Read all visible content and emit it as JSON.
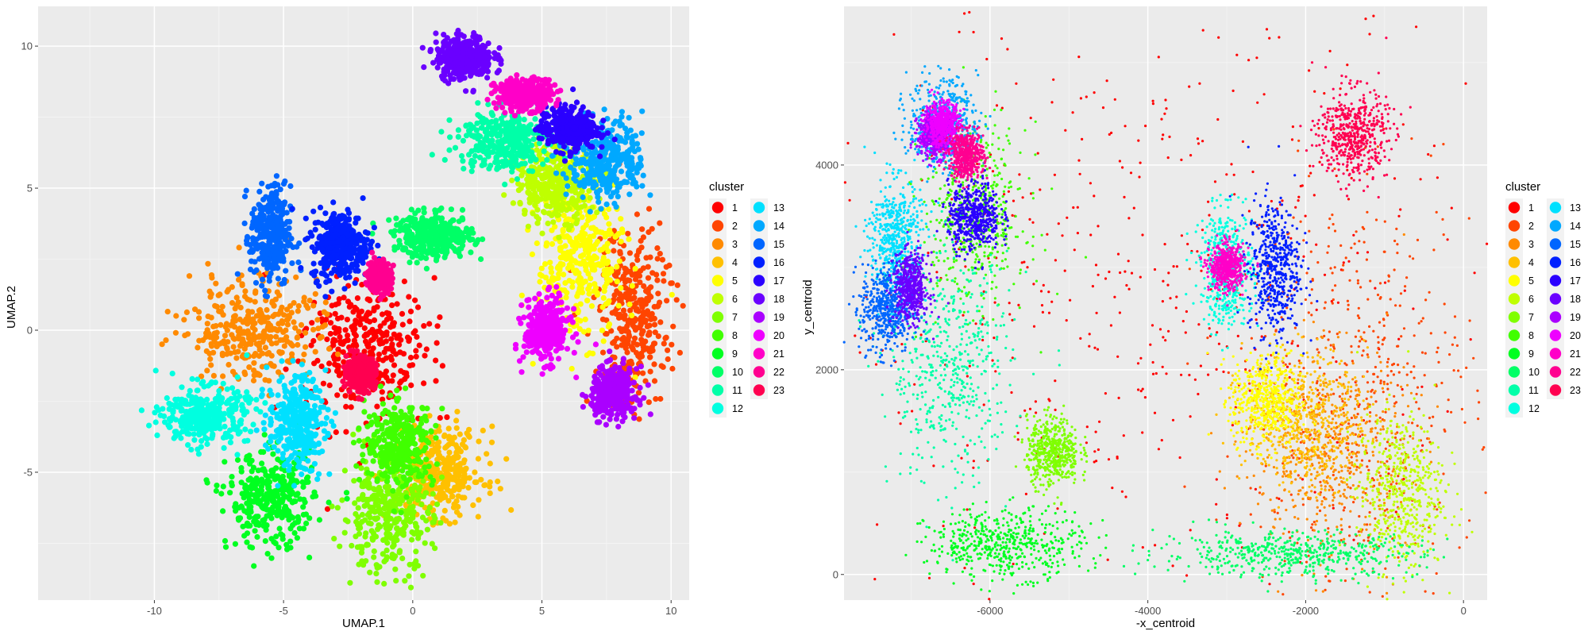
{
  "chart_data": [
    {
      "type": "scatter",
      "title": "",
      "xlabel": "UMAP.1",
      "ylabel": "UMAP.2",
      "xlim": [
        -14.5,
        10.7
      ],
      "ylim": [
        -9.5,
        11.4
      ],
      "x_ticks": [
        -10,
        -5,
        0,
        5,
        10
      ],
      "y_ticks": [
        -5,
        0,
        5,
        10
      ],
      "x_tick_labels": [
        "-10",
        "-5",
        "0",
        "5",
        "10"
      ],
      "y_tick_labels": [
        "-5",
        "0",
        "5",
        "10"
      ],
      "grid": true,
      "legend": {
        "title": "cluster",
        "position": "right"
      },
      "regions": [
        {
          "cluster": "1",
          "x": -1.8,
          "y": -0.6,
          "rx": 2.2,
          "ry": 2.2
        },
        {
          "cluster": "2",
          "x": 8.6,
          "y": 0.5,
          "rx": 1.3,
          "ry": 2.8
        },
        {
          "cluster": "3",
          "x": -6.2,
          "y": 0.0,
          "rx": 2.3,
          "ry": 1.6
        },
        {
          "cluster": "4",
          "x": 1.0,
          "y": -5.0,
          "rx": 1.6,
          "ry": 1.4
        },
        {
          "cluster": "5",
          "x": 6.5,
          "y": 2.5,
          "rx": 1.5,
          "ry": 2.5
        },
        {
          "cluster": "6",
          "x": 5.5,
          "y": 5.2,
          "rx": 1.4,
          "ry": 1.2
        },
        {
          "cluster": "7",
          "x": -1.0,
          "y": -6.5,
          "rx": 1.6,
          "ry": 1.8
        },
        {
          "cluster": "8",
          "x": -0.5,
          "y": -4.0,
          "rx": 1.2,
          "ry": 1.3
        },
        {
          "cluster": "9",
          "x": -5.5,
          "y": -6.0,
          "rx": 1.5,
          "ry": 1.5
        },
        {
          "cluster": "10",
          "x": 0.8,
          "y": 3.3,
          "rx": 1.4,
          "ry": 0.7
        },
        {
          "cluster": "11",
          "x": 3.5,
          "y": 6.7,
          "rx": 1.6,
          "ry": 1.0
        },
        {
          "cluster": "12",
          "x": -8.0,
          "y": -3.0,
          "rx": 1.5,
          "ry": 0.9
        },
        {
          "cluster": "13",
          "x": -4.5,
          "y": -3.2,
          "rx": 1.0,
          "ry": 1.5
        },
        {
          "cluster": "14",
          "x": 7.5,
          "y": 6.0,
          "rx": 1.3,
          "ry": 1.3
        },
        {
          "cluster": "15",
          "x": -5.5,
          "y": 3.3,
          "rx": 0.7,
          "ry": 1.6
        },
        {
          "cluster": "16",
          "x": -2.8,
          "y": 3.0,
          "rx": 1.0,
          "ry": 1.1
        },
        {
          "cluster": "17",
          "x": 6.0,
          "y": 7.1,
          "rx": 1.0,
          "ry": 0.7
        },
        {
          "cluster": "18",
          "x": 2.0,
          "y": 9.6,
          "rx": 1.0,
          "ry": 0.7
        },
        {
          "cluster": "19",
          "x": 7.8,
          "y": -2.2,
          "rx": 0.8,
          "ry": 0.8
        },
        {
          "cluster": "20",
          "x": 5.2,
          "y": 0.0,
          "rx": 0.8,
          "ry": 1.0
        },
        {
          "cluster": "21",
          "x": 4.3,
          "y": 8.3,
          "rx": 1.0,
          "ry": 0.5
        },
        {
          "cluster": "22",
          "x": -1.3,
          "y": 1.9,
          "rx": 0.4,
          "ry": 0.5
        },
        {
          "cluster": "23",
          "x": -2.0,
          "y": -1.5,
          "rx": 0.5,
          "ry": 0.5
        }
      ]
    },
    {
      "type": "scatter",
      "title": "",
      "xlabel": "-x_centroid",
      "ylabel": "y_centroid",
      "xlim": [
        -7850,
        300
      ],
      "ylim": [
        -250,
        5550
      ],
      "x_ticks": [
        -6000,
        -4000,
        -2000,
        0
      ],
      "y_ticks": [
        0,
        2000,
        4000
      ],
      "x_tick_labels": [
        "-6000",
        "-4000",
        "-2000",
        "0"
      ],
      "y_tick_labels": [
        "0",
        "2000",
        "4000"
      ],
      "grid": true,
      "legend": {
        "title": "cluster",
        "position": "right"
      },
      "regions": [
        {
          "cluster": "1",
          "x": -4000,
          "y": 2700,
          "rx": 3800,
          "ry": 2700
        },
        {
          "cluster": "2",
          "x": -1300,
          "y": 1800,
          "rx": 1300,
          "ry": 1800
        },
        {
          "cluster": "3",
          "x": -1700,
          "y": 1200,
          "rx": 900,
          "ry": 900
        },
        {
          "cluster": "4",
          "x": -2000,
          "y": 1500,
          "rx": 700,
          "ry": 600
        },
        {
          "cluster": "5",
          "x": -2500,
          "y": 1700,
          "rx": 400,
          "ry": 400
        },
        {
          "cluster": "6",
          "x": -800,
          "y": 800,
          "rx": 500,
          "ry": 700
        },
        {
          "cluster": "7",
          "x": -5200,
          "y": 1200,
          "rx": 300,
          "ry": 300
        },
        {
          "cluster": "8",
          "x": -6200,
          "y": 3500,
          "rx": 600,
          "ry": 800
        },
        {
          "cluster": "9",
          "x": -5800,
          "y": 300,
          "rx": 900,
          "ry": 300
        },
        {
          "cluster": "10",
          "x": -2200,
          "y": 200,
          "rx": 1500,
          "ry": 200
        },
        {
          "cluster": "11",
          "x": -6500,
          "y": 2000,
          "rx": 700,
          "ry": 1000
        },
        {
          "cluster": "12",
          "x": -3000,
          "y": 3000,
          "rx": 300,
          "ry": 500
        },
        {
          "cluster": "13",
          "x": -7200,
          "y": 3300,
          "rx": 300,
          "ry": 500
        },
        {
          "cluster": "14",
          "x": -6600,
          "y": 4400,
          "rx": 400,
          "ry": 400
        },
        {
          "cluster": "15",
          "x": -7300,
          "y": 2600,
          "rx": 300,
          "ry": 400
        },
        {
          "cluster": "16",
          "x": -2400,
          "y": 3000,
          "rx": 300,
          "ry": 600
        },
        {
          "cluster": "17",
          "x": -6200,
          "y": 3500,
          "rx": 300,
          "ry": 300
        },
        {
          "cluster": "18",
          "x": -7000,
          "y": 2800,
          "rx": 200,
          "ry": 300
        },
        {
          "cluster": "19",
          "x": -6700,
          "y": 4300,
          "rx": 200,
          "ry": 200
        },
        {
          "cluster": "20",
          "x": -6600,
          "y": 4400,
          "rx": 200,
          "ry": 200
        },
        {
          "cluster": "21",
          "x": -3000,
          "y": 3000,
          "rx": 200,
          "ry": 200
        },
        {
          "cluster": "22",
          "x": -6300,
          "y": 4100,
          "rx": 200,
          "ry": 200
        },
        {
          "cluster": "23",
          "x": -1400,
          "y": 4300,
          "rx": 400,
          "ry": 400
        }
      ]
    }
  ],
  "legend_clusters": [
    {
      "label": "1",
      "color": "#ff0000"
    },
    {
      "label": "2",
      "color": "#ff4500"
    },
    {
      "label": "3",
      "color": "#ff8a00"
    },
    {
      "label": "4",
      "color": "#ffc000"
    },
    {
      "label": "5",
      "color": "#ffff00"
    },
    {
      "label": "6",
      "color": "#bfff00"
    },
    {
      "label": "7",
      "color": "#7fff00"
    },
    {
      "label": "8",
      "color": "#40ff00"
    },
    {
      "label": "9",
      "color": "#00ff20"
    },
    {
      "label": "10",
      "color": "#00ff66"
    },
    {
      "label": "11",
      "color": "#00ffa8"
    },
    {
      "label": "12",
      "color": "#00ffe0"
    },
    {
      "label": "13",
      "color": "#00e0ff"
    },
    {
      "label": "14",
      "color": "#00a8ff"
    },
    {
      "label": "15",
      "color": "#0066ff"
    },
    {
      "label": "16",
      "color": "#0020ff"
    },
    {
      "label": "17",
      "color": "#2a00ff"
    },
    {
      "label": "18",
      "color": "#6a00ff"
    },
    {
      "label": "19",
      "color": "#aa00ff"
    },
    {
      "label": "20",
      "color": "#ee00ff"
    },
    {
      "label": "21",
      "color": "#ff00c8"
    },
    {
      "label": "22",
      "color": "#ff0090"
    },
    {
      "label": "23",
      "color": "#ff0050"
    }
  ]
}
